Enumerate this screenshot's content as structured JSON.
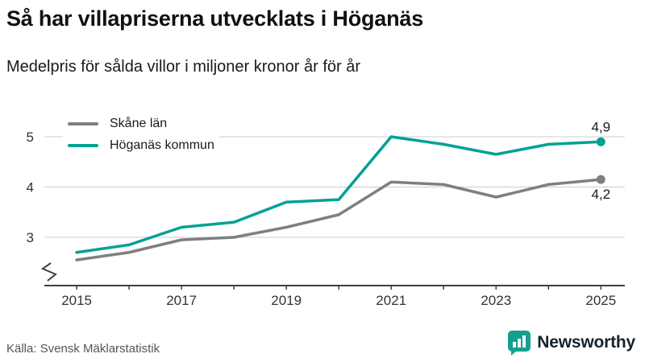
{
  "header": {
    "title": "Så har villapriserna utvecklats i Höganäs",
    "subtitle": "Medelpris för sålda villor i miljoner kronor år för år"
  },
  "footer": {
    "source": "Källa: Svensk Mäklarstatistik",
    "brand": "Newsworthy",
    "brand_color": "#13a08f"
  },
  "chart_data": {
    "type": "line",
    "title": "Så har villapriserna utvecklats i Höganäs",
    "subtitle": "Medelpris för sålda villor i miljoner kronor år för år",
    "x": [
      2015,
      2016,
      2017,
      2018,
      2019,
      2020,
      2021,
      2022,
      2023,
      2024,
      2025
    ],
    "series": [
      {
        "name": "Skåne län",
        "color": "#7f7f7f",
        "values": [
          2.55,
          2.7,
          2.95,
          3.0,
          3.2,
          3.45,
          4.1,
          4.05,
          3.8,
          4.05,
          4.15
        ],
        "end_label": "4,2",
        "end_label_position": "below"
      },
      {
        "name": "Höganäs kommun",
        "color": "#00a195",
        "values": [
          2.7,
          2.85,
          3.2,
          3.3,
          3.7,
          3.75,
          5.0,
          4.85,
          4.65,
          4.85,
          4.9
        ],
        "end_label": "4,9",
        "end_label_position": "above"
      }
    ],
    "y_ticks": [
      "3",
      "4",
      "5"
    ],
    "y_tick_values": [
      3,
      4,
      5
    ],
    "x_tick_labels": [
      "2015",
      "2017",
      "2019",
      "2021",
      "2023",
      "2025"
    ],
    "x_tick_values": [
      2015,
      2017,
      2019,
      2021,
      2023,
      2025
    ],
    "ylim": [
      2.04,
      5.72
    ],
    "xlim": [
      2014.46,
      2025.38
    ],
    "grid": "horizontal",
    "axis_break": true,
    "legend_position": "top-left",
    "grid_color": "#cccccc",
    "axis_color": "#404040",
    "label_color": "#333333",
    "annotation_color": "#1a1a1a"
  }
}
